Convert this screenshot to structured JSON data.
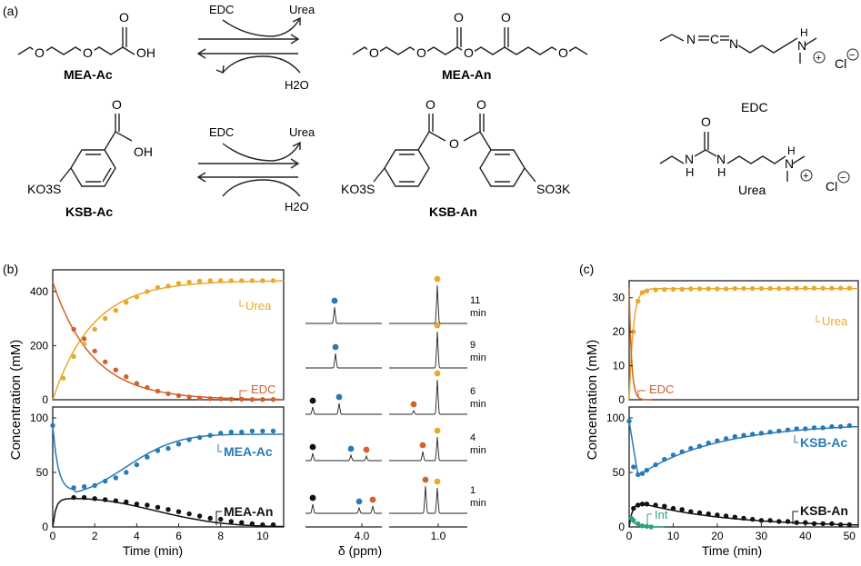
{
  "panels": {
    "a": "(a)",
    "b": "(b)",
    "c": "(c)"
  },
  "reaction1": {
    "reactant": "MEA-Ac",
    "product": "MEA-An",
    "reagent": "EDC",
    "byproduct": "Urea",
    "water": "H2O",
    "oh": "OH",
    "o": "O"
  },
  "reaction2": {
    "reactant": "KSB-Ac",
    "product": "KSB-An",
    "reagent": "EDC",
    "byproduct": "Urea",
    "water": "H2O",
    "oh": "OH",
    "o": "O",
    "ko3s": "KO3S",
    "so3k": "SO3K"
  },
  "reagents": {
    "edc": "EDC",
    "urea": "Urea",
    "cl": "Cl",
    "n": "N",
    "c": "C",
    "h": "H",
    "o": "O",
    "plus": "+",
    "minus": "−"
  },
  "colors": {
    "urea": "#e8a92c",
    "edc": "#d2612c",
    "ac": "#2a7ab5",
    "an": "#111111",
    "int": "#2aa37c",
    "axis": "#222222"
  },
  "panel_b": {
    "ylabel": "Concentration (mM)",
    "xlabel": "Time (min)",
    "xticks": [
      "0",
      "2",
      "4",
      "6",
      "8",
      "10"
    ],
    "top_yticks": [
      "0",
      "200",
      "400"
    ],
    "bottom_yticks": [
      "0",
      "50",
      "100"
    ],
    "labels": {
      "urea": "Urea",
      "edc": "EDC",
      "ac": "MEA-Ac",
      "an": "MEA-An"
    }
  },
  "nmr": {
    "xlabel": "δ (ppm)",
    "xticks": [
      "4.0",
      "1.0"
    ],
    "times": [
      "11",
      "9",
      "6",
      "4",
      "1"
    ],
    "unit": "min"
  },
  "panel_c": {
    "ylabel": "Concentration (mM)",
    "xlabel": "Time (min)",
    "xticks": [
      "0",
      "10",
      "20",
      "30",
      "40",
      "50"
    ],
    "top_yticks": [
      "0",
      "10",
      "20",
      "30"
    ],
    "bottom_yticks": [
      "0",
      "50",
      "100"
    ],
    "labels": {
      "urea": "Urea",
      "edc": "EDC",
      "ac": "KSB-Ac",
      "an": "KSB-An",
      "int": "Int"
    }
  },
  "chart_data": [
    {
      "type": "scatter",
      "id": "b-top",
      "xlabel": "Time (min)",
      "ylabel": "Concentration (mM)",
      "xlim": [
        0,
        11
      ],
      "ylim": [
        0,
        480
      ],
      "series": [
        {
          "name": "Urea",
          "points": [
            [
              0.5,
              80
            ],
            [
              1,
              160
            ],
            [
              1.5,
              205
            ],
            [
              2,
              260
            ],
            [
              2.5,
              300
            ],
            [
              3,
              330
            ],
            [
              3.5,
              360
            ],
            [
              4,
              380
            ],
            [
              4.5,
              400
            ],
            [
              5,
              415
            ],
            [
              5.5,
              420
            ],
            [
              6,
              430
            ],
            [
              6.5,
              435
            ],
            [
              7,
              438
            ],
            [
              7.5,
              440
            ],
            [
              8,
              440
            ],
            [
              8.5,
              440
            ],
            [
              9,
              440
            ],
            [
              9.5,
              440
            ],
            [
              10,
              440
            ],
            [
              10.5,
              440
            ]
          ]
        },
        {
          "name": "EDC",
          "points": [
            [
              1,
              260
            ],
            [
              1.5,
              225
            ],
            [
              2,
              180
            ],
            [
              2.5,
              140
            ],
            [
              3,
              110
            ],
            [
              3.5,
              85
            ],
            [
              4,
              60
            ],
            [
              4.5,
              45
            ],
            [
              5,
              32
            ],
            [
              5.5,
              22
            ],
            [
              6,
              15
            ],
            [
              6.5,
              10
            ],
            [
              7,
              6
            ],
            [
              7.5,
              4
            ],
            [
              8,
              3
            ],
            [
              8.5,
              2
            ],
            [
              9,
              2
            ],
            [
              9.5,
              1
            ],
            [
              10,
              1
            ],
            [
              10.5,
              1
            ]
          ]
        }
      ]
    },
    {
      "type": "scatter",
      "id": "b-bottom",
      "xlabel": "Time (min)",
      "ylabel": "Concentration (mM)",
      "xlim": [
        0,
        11
      ],
      "ylim": [
        0,
        110
      ],
      "series": [
        {
          "name": "MEA-Ac",
          "points": [
            [
              0,
              93
            ],
            [
              1,
              36
            ],
            [
              1.5,
              37
            ],
            [
              2,
              38
            ],
            [
              2.5,
              42
            ],
            [
              3,
              45
            ],
            [
              3.5,
              50
            ],
            [
              4,
              57
            ],
            [
              4.5,
              64
            ],
            [
              5,
              70
            ],
            [
              5.5,
              72
            ],
            [
              6,
              76
            ],
            [
              6.5,
              80
            ],
            [
              7,
              82
            ],
            [
              7.5,
              84
            ],
            [
              8,
              86
            ],
            [
              8.5,
              87
            ],
            [
              9,
              87
            ],
            [
              9.5,
              88
            ],
            [
              10,
              88
            ],
            [
              10.5,
              88
            ]
          ]
        },
        {
          "name": "MEA-An",
          "points": [
            [
              1,
              27
            ],
            [
              1.5,
              27
            ],
            [
              2,
              26
            ],
            [
              2.5,
              25
            ],
            [
              3,
              24
            ],
            [
              3.5,
              23
            ],
            [
              4,
              21
            ],
            [
              4.5,
              20
            ],
            [
              5,
              18
            ],
            [
              5.5,
              16
            ],
            [
              6,
              14
            ],
            [
              6.5,
              12
            ],
            [
              7,
              10
            ],
            [
              7.5,
              8
            ],
            [
              8,
              7
            ],
            [
              8.5,
              5
            ],
            [
              9,
              4
            ],
            [
              9.5,
              3
            ],
            [
              10,
              2
            ],
            [
              10.5,
              2
            ]
          ]
        }
      ]
    },
    {
      "type": "scatter",
      "id": "c-top",
      "xlabel": "Time (min)",
      "ylabel": "Concentration (mM)",
      "xlim": [
        0,
        52
      ],
      "ylim": [
        0,
        35
      ],
      "series": [
        {
          "name": "Urea",
          "points": [
            [
              1,
              20
            ],
            [
              2,
              29
            ],
            [
              3,
              31.5
            ],
            [
              4,
              32
            ],
            [
              6,
              32.3
            ],
            [
              8,
              32.4
            ],
            [
              10,
              32.5
            ],
            [
              12,
              32.5
            ],
            [
              14,
              32.6
            ],
            [
              16,
              32.6
            ],
            [
              18,
              32.6
            ],
            [
              20,
              32.6
            ],
            [
              22,
              32.6
            ],
            [
              24,
              32.7
            ],
            [
              26,
              32.7
            ],
            [
              28,
              32.7
            ],
            [
              30,
              32.7
            ],
            [
              32,
              32.7
            ],
            [
              34,
              32.7
            ],
            [
              36,
              32.7
            ],
            [
              38,
              32.8
            ],
            [
              40,
              32.8
            ],
            [
              42,
              32.8
            ],
            [
              44,
              32.8
            ],
            [
              46,
              32.8
            ],
            [
              48,
              32.8
            ],
            [
              50,
              32.8
            ]
          ]
        },
        {
          "name": "EDC",
          "points": []
        }
      ]
    },
    {
      "type": "scatter",
      "id": "c-bottom",
      "xlabel": "Time (min)",
      "ylabel": "Concentration (mM)",
      "xlim": [
        0,
        52
      ],
      "ylim": [
        0,
        110
      ],
      "series": [
        {
          "name": "KSB-Ac",
          "points": [
            [
              0,
              97
            ],
            [
              1,
              55
            ],
            [
              2,
              48
            ],
            [
              3,
              49
            ],
            [
              4,
              52
            ],
            [
              6,
              57
            ],
            [
              8,
              62
            ],
            [
              10,
              66
            ],
            [
              12,
              69
            ],
            [
              14,
              72
            ],
            [
              16,
              74
            ],
            [
              18,
              77
            ],
            [
              20,
              79
            ],
            [
              22,
              81
            ],
            [
              24,
              83
            ],
            [
              26,
              84
            ],
            [
              28,
              85
            ],
            [
              30,
              86
            ],
            [
              32,
              87
            ],
            [
              34,
              88
            ],
            [
              36,
              89
            ],
            [
              38,
              90
            ],
            [
              40,
              90
            ],
            [
              42,
              91
            ],
            [
              44,
              91
            ],
            [
              46,
              92
            ],
            [
              48,
              92
            ],
            [
              50,
              93
            ]
          ]
        },
        {
          "name": "KSB-An",
          "points": [
            [
              1,
              17
            ],
            [
              2,
              20
            ],
            [
              3,
              21
            ],
            [
              4,
              21
            ],
            [
              6,
              20
            ],
            [
              8,
              19
            ],
            [
              10,
              17
            ],
            [
              12,
              16
            ],
            [
              14,
              14
            ],
            [
              16,
              13
            ],
            [
              18,
              12
            ],
            [
              20,
              11
            ],
            [
              22,
              10
            ],
            [
              24,
              9
            ],
            [
              26,
              8
            ],
            [
              28,
              7
            ],
            [
              30,
              6
            ],
            [
              32,
              6
            ],
            [
              34,
              5
            ],
            [
              36,
              5
            ],
            [
              38,
              4
            ],
            [
              40,
              4
            ],
            [
              42,
              3
            ],
            [
              44,
              3
            ],
            [
              46,
              3
            ],
            [
              48,
              2
            ],
            [
              50,
              2
            ]
          ]
        },
        {
          "name": "Int",
          "points": [
            [
              0.5,
              8
            ],
            [
              1,
              6
            ],
            [
              2,
              3
            ],
            [
              3,
              1
            ],
            [
              4,
              0.5
            ],
            [
              5,
              0
            ]
          ]
        }
      ]
    }
  ]
}
